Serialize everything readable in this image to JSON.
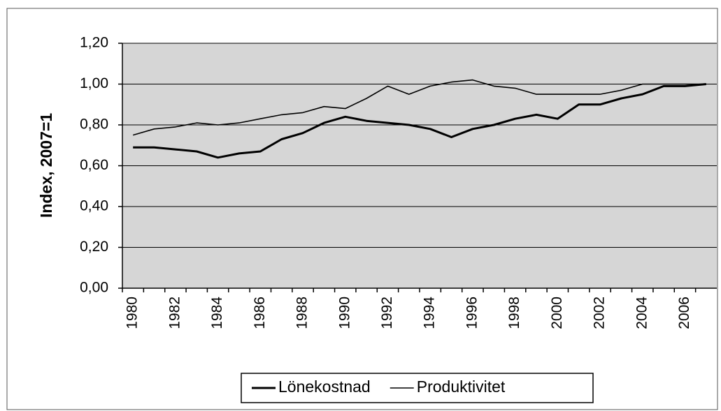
{
  "chart_data": {
    "type": "line",
    "ylabel": "Index,  2007=1",
    "categories": [
      "1980",
      null,
      "1982",
      null,
      "1984",
      null,
      "1986",
      null,
      "1988",
      null,
      "1990",
      null,
      "1992",
      null,
      "1994",
      null,
      "1996",
      null,
      "1998",
      null,
      "2000",
      null,
      "2002",
      null,
      "2004",
      null,
      "2006",
      null
    ],
    "series": [
      {
        "name": "Lönekostnad",
        "color": "#000000",
        "values": [
          0.69,
          0.69,
          0.68,
          0.67,
          0.64,
          0.66,
          0.67,
          0.73,
          0.76,
          0.81,
          0.84,
          0.82,
          0.81,
          0.8,
          0.78,
          0.74,
          0.78,
          0.8,
          0.83,
          0.85,
          0.83,
          0.9,
          0.9,
          0.93,
          0.95,
          0.99,
          0.99,
          1.0
        ]
      },
      {
        "name": "Produktivitet",
        "color": "#000000",
        "values": [
          0.75,
          0.78,
          0.79,
          0.81,
          0.8,
          0.81,
          0.83,
          0.85,
          0.86,
          0.89,
          0.88,
          0.93,
          0.99,
          0.95,
          0.99,
          1.01,
          1.02,
          0.99,
          0.98,
          0.95,
          0.95,
          0.95,
          0.95,
          0.97,
          1.0,
          1.0,
          1.0,
          1.0
        ]
      }
    ],
    "ylim": [
      0,
      1.2
    ],
    "yticks": [
      {
        "value": 0,
        "label": "0,00"
      },
      {
        "value": 0.2,
        "label": "0,20"
      },
      {
        "value": 0.4,
        "label": "0,40"
      },
      {
        "value": 0.6,
        "label": "0,60"
      },
      {
        "value": 0.8,
        "label": "0,80"
      },
      {
        "value": 1.0,
        "label": "1,00"
      },
      {
        "value": 1.2,
        "label": "1,20"
      }
    ],
    "grid": true,
    "legend": "bottom"
  }
}
